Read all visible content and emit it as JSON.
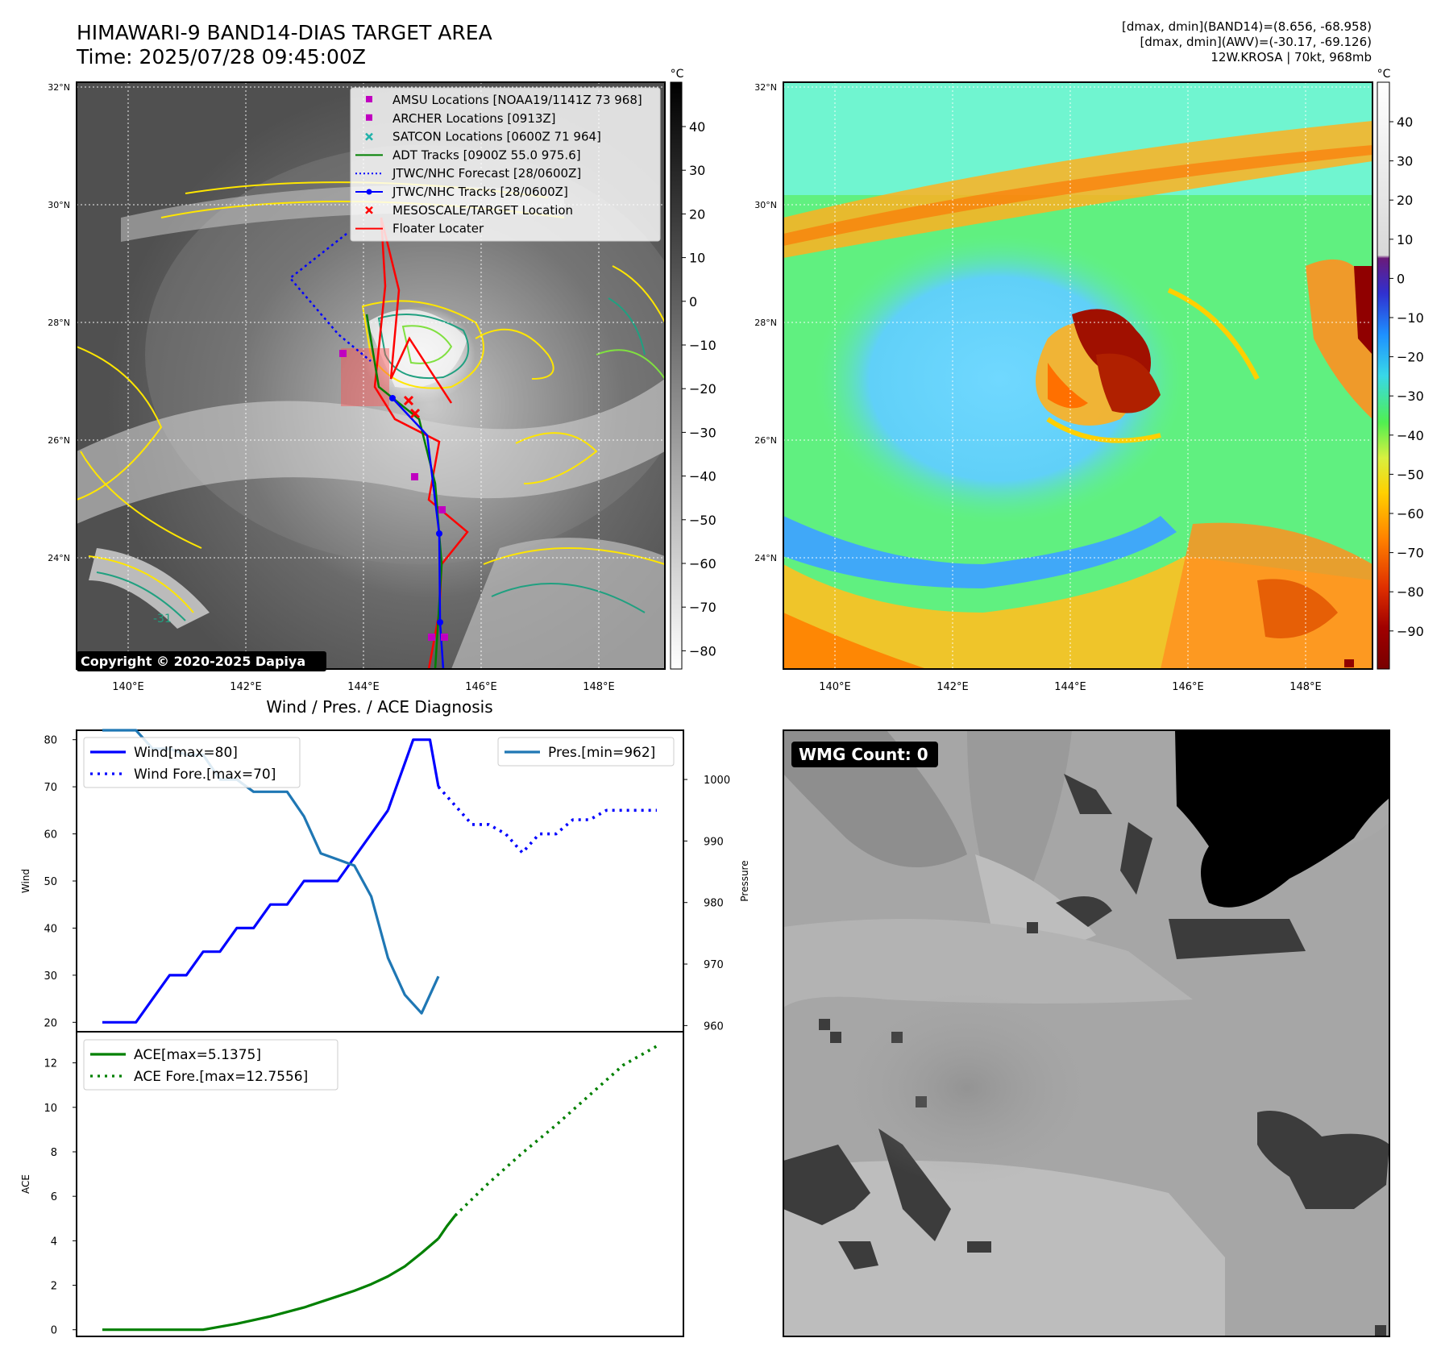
{
  "header": {
    "title_line1": "HIMAWARI-9 BAND14-DIAS TARGET AREA",
    "title_line2": "Time: 2025/07/28 09:45:00Z",
    "info_line1": "[dmax, dmin](BAND14)=(8.656, -68.958)",
    "info_line2": "[dmax, dmin](AWV)=(-30.17, -69.126)",
    "info_line3": "12W.KROSA | 70kt, 968mb"
  },
  "ir_map": {
    "lat_labels": [
      "32°N",
      "30°N",
      "28°N",
      "26°N",
      "24°N"
    ],
    "lon_labels": [
      "140°E",
      "142°E",
      "144°E",
      "146°E",
      "148°E"
    ],
    "contour_label": "-31",
    "copyright": "Copyright © 2020-2025 Dapiya",
    "colorbar": {
      "unit": "°C",
      "ticks": [
        "40",
        "30",
        "20",
        "10",
        "0",
        "−10",
        "−20",
        "−30",
        "−40",
        "−50",
        "−60",
        "−70",
        "−80"
      ]
    },
    "legend": [
      {
        "label": "AMSU Locations [NOAA19/1141Z 73 968]",
        "marker": "square",
        "color": "#c000c0"
      },
      {
        "label": "ARCHER Locations [0913Z]",
        "marker": "square",
        "color": "#c000c0"
      },
      {
        "label": "SATCON Locations [0600Z 71 964]",
        "marker": "x",
        "color": "#20b2aa"
      },
      {
        "label": "ADT Tracks [0900Z 55.0 975.6]",
        "marker": "line",
        "color": "#008000"
      },
      {
        "label": "JTWC/NHC Forecast [28/0600Z]",
        "marker": "dotted",
        "color": "#0000ff"
      },
      {
        "label": "JTWC/NHC Tracks [28/0600Z]",
        "marker": "line-dot",
        "color": "#0000ff"
      },
      {
        "label": "MESOSCALE/TARGET Location",
        "marker": "x",
        "color": "#ff0000"
      },
      {
        "label": "Floater Locater",
        "marker": "line",
        "color": "#ff0000"
      }
    ]
  },
  "awv_map": {
    "lat_labels": [
      "32°N",
      "30°N",
      "28°N",
      "26°N",
      "24°N"
    ],
    "lon_labels": [
      "140°E",
      "142°E",
      "144°E",
      "146°E",
      "148°E"
    ],
    "colorbar": {
      "unit": "°C",
      "ticks": [
        "40",
        "30",
        "20",
        "10",
        "0",
        "−10",
        "−20",
        "−30",
        "−40",
        "−50",
        "−60",
        "−70",
        "−80",
        "−90"
      ]
    }
  },
  "wmg": {
    "label": "WMG Count: 0"
  },
  "chart_data": [
    {
      "type": "line",
      "title": "Wind / Pres. / ACE Diagnosis",
      "ylabel": "Wind",
      "ylim": [
        18,
        82
      ],
      "yticks": [
        "20",
        "30",
        "40",
        "50",
        "60",
        "70",
        "80"
      ],
      "y2label": "Pressure",
      "y2lim": [
        959,
        1008
      ],
      "y2ticks": [
        "960",
        "970",
        "980",
        "990",
        "1000"
      ],
      "legend_left": [
        {
          "label": "Wind[max=80]",
          "style": "solid",
          "color": "#0000ff"
        },
        {
          "label": "Wind Fore.[max=70]",
          "style": "dotted",
          "color": "#0000ff"
        }
      ],
      "legend_right": [
        {
          "label": "Pres.[min=962]",
          "style": "solid",
          "color": "#1f77b4"
        }
      ],
      "series": [
        {
          "color": "#0000ff",
          "style": "solid",
          "axis": "left",
          "x": [
            0,
            1,
            2,
            3,
            4,
            5,
            6,
            7,
            8,
            9,
            10,
            11,
            12,
            13,
            14,
            15,
            16,
            17
          ],
          "values": [
            20,
            20,
            20,
            25,
            30,
            30,
            35,
            35,
            40,
            40,
            45,
            45,
            50,
            50,
            50,
            55,
            60,
            65
          ]
        },
        {
          "color": "#0000ff",
          "style": "solid",
          "axis": "left",
          "x": [
            17,
            17.5,
            18,
            18.5,
            19,
            19.5,
            20
          ],
          "values": [
            65,
            70,
            75,
            80,
            80,
            80,
            70
          ]
        },
        {
          "color": "#0000ff",
          "style": "dotted",
          "axis": "left",
          "x": [
            20,
            21,
            22,
            23,
            24,
            25,
            26,
            27,
            28,
            29,
            30,
            31,
            32,
            33
          ],
          "values": [
            70,
            66,
            62,
            62,
            60,
            56,
            60,
            60,
            63,
            63,
            65,
            65,
            65,
            65
          ]
        },
        {
          "color": "#1f77b4",
          "style": "solid",
          "axis": "right",
          "x": [
            0,
            1,
            2,
            3,
            4,
            5,
            6,
            7,
            8,
            9,
            10,
            11,
            12,
            13,
            14,
            15,
            16,
            17,
            18,
            19,
            20
          ],
          "values": [
            1008,
            1008,
            1008,
            1005,
            1005,
            1004,
            1004,
            1000,
            1000,
            998,
            998,
            998,
            994,
            988,
            987,
            986,
            981,
            971,
            965,
            962,
            968
          ]
        }
      ]
    },
    {
      "type": "line",
      "ylabel": "ACE",
      "ylim": [
        -0.3,
        13.4
      ],
      "yticks": [
        "0",
        "2",
        "4",
        "6",
        "8",
        "10",
        "12"
      ],
      "legend": [
        {
          "label": "ACE[max=5.1375]",
          "style": "solid",
          "color": "#008000"
        },
        {
          "label": "ACE Fore.[max=12.7556]",
          "style": "dotted",
          "color": "#008000"
        }
      ],
      "series": [
        {
          "color": "#008000",
          "style": "solid",
          "x": [
            0,
            2,
            4,
            6,
            8,
            10,
            12,
            13,
            14,
            15,
            16,
            17,
            18,
            19,
            20
          ],
          "values": [
            0,
            0,
            0,
            0,
            0.27,
            0.6,
            1.0,
            1.25,
            1.5,
            1.75,
            2.05,
            2.4,
            2.85,
            3.45,
            4.1
          ]
        },
        {
          "color": "#008000",
          "style": "solid",
          "x": [
            20,
            20.5,
            21
          ],
          "values": [
            4.1,
            4.65,
            5.1375
          ]
        },
        {
          "color": "#008000",
          "style": "dotted",
          "x": [
            21,
            23,
            25,
            27,
            29,
            31,
            33
          ],
          "values": [
            5.1375,
            6.6,
            7.95,
            9.2,
            10.55,
            11.9,
            12.7556
          ]
        }
      ]
    }
  ]
}
